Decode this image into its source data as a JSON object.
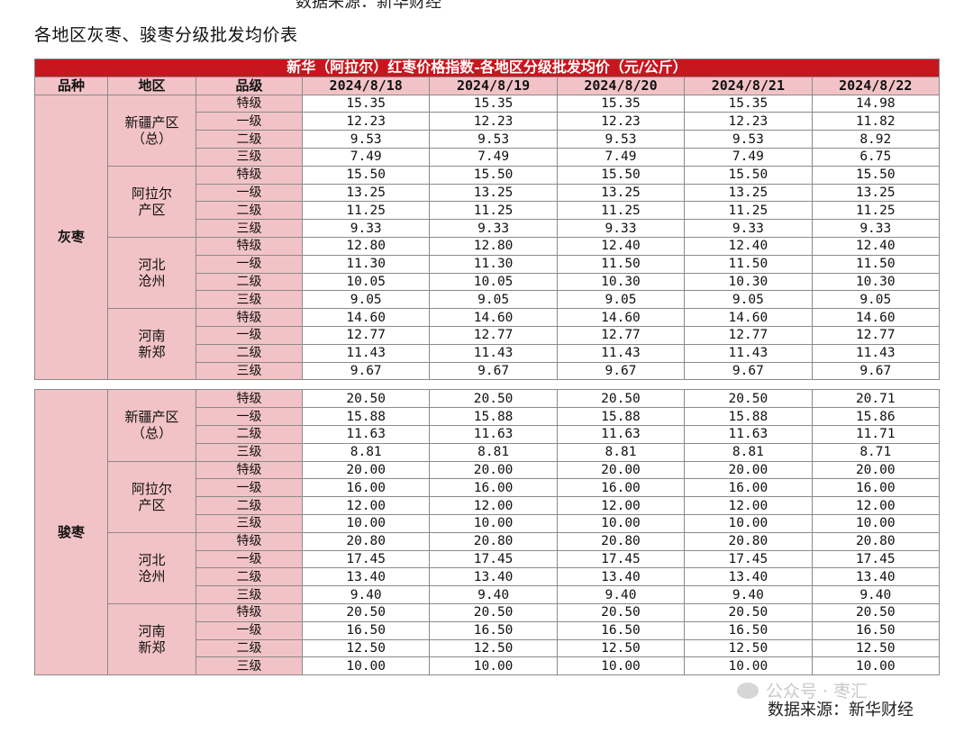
{
  "source_top": "数据来源：新华财经",
  "caption": "各地区灰枣、骏枣分级批发均价表",
  "table": {
    "title": "新华（阿拉尔）红枣价格指数-各地区分级批发均价（元/公斤）",
    "headers": {
      "variety": "品种",
      "region": "地区",
      "grade": "品级",
      "dates": [
        "2024/8/18",
        "2024/8/19",
        "2024/8/20",
        "2024/8/21",
        "2024/8/22"
      ]
    },
    "groups": [
      {
        "variety": "灰枣",
        "regions": [
          {
            "name_l1": "新疆产区",
            "name_l2": "（总）",
            "rows": [
              {
                "grade": "特级",
                "values": [
                  "15.35",
                  "15.35",
                  "15.35",
                  "15.35",
                  "14.98"
                ]
              },
              {
                "grade": "一级",
                "values": [
                  "12.23",
                  "12.23",
                  "12.23",
                  "12.23",
                  "11.82"
                ]
              },
              {
                "grade": "二级",
                "values": [
                  "9.53",
                  "9.53",
                  "9.53",
                  "9.53",
                  "8.92"
                ]
              },
              {
                "grade": "三级",
                "values": [
                  "7.49",
                  "7.49",
                  "7.49",
                  "7.49",
                  "6.75"
                ]
              }
            ]
          },
          {
            "name_l1": "阿拉尔",
            "name_l2": "产区",
            "rows": [
              {
                "grade": "特级",
                "values": [
                  "15.50",
                  "15.50",
                  "15.50",
                  "15.50",
                  "15.50"
                ]
              },
              {
                "grade": "一级",
                "values": [
                  "13.25",
                  "13.25",
                  "13.25",
                  "13.25",
                  "13.25"
                ]
              },
              {
                "grade": "二级",
                "values": [
                  "11.25",
                  "11.25",
                  "11.25",
                  "11.25",
                  "11.25"
                ]
              },
              {
                "grade": "三级",
                "values": [
                  "9.33",
                  "9.33",
                  "9.33",
                  "9.33",
                  "9.33"
                ]
              }
            ]
          },
          {
            "name_l1": "河北",
            "name_l2": "沧州",
            "rows": [
              {
                "grade": "特级",
                "values": [
                  "12.80",
                  "12.80",
                  "12.40",
                  "12.40",
                  "12.40"
                ]
              },
              {
                "grade": "一级",
                "values": [
                  "11.30",
                  "11.30",
                  "11.50",
                  "11.50",
                  "11.50"
                ]
              },
              {
                "grade": "二级",
                "values": [
                  "10.05",
                  "10.05",
                  "10.30",
                  "10.30",
                  "10.30"
                ]
              },
              {
                "grade": "三级",
                "values": [
                  "9.05",
                  "9.05",
                  "9.05",
                  "9.05",
                  "9.05"
                ]
              }
            ]
          },
          {
            "name_l1": "河南",
            "name_l2": "新郑",
            "rows": [
              {
                "grade": "特级",
                "values": [
                  "14.60",
                  "14.60",
                  "14.60",
                  "14.60",
                  "14.60"
                ]
              },
              {
                "grade": "一级",
                "values": [
                  "12.77",
                  "12.77",
                  "12.77",
                  "12.77",
                  "12.77"
                ]
              },
              {
                "grade": "二级",
                "values": [
                  "11.43",
                  "11.43",
                  "11.43",
                  "11.43",
                  "11.43"
                ]
              },
              {
                "grade": "三级",
                "values": [
                  "9.67",
                  "9.67",
                  "9.67",
                  "9.67",
                  "9.67"
                ]
              }
            ]
          }
        ]
      },
      {
        "variety": "骏枣",
        "regions": [
          {
            "name_l1": "新疆产区",
            "name_l2": "（总）",
            "rows": [
              {
                "grade": "特级",
                "values": [
                  "20.50",
                  "20.50",
                  "20.50",
                  "20.50",
                  "20.71"
                ]
              },
              {
                "grade": "一级",
                "values": [
                  "15.88",
                  "15.88",
                  "15.88",
                  "15.88",
                  "15.86"
                ]
              },
              {
                "grade": "二级",
                "values": [
                  "11.63",
                  "11.63",
                  "11.63",
                  "11.63",
                  "11.71"
                ]
              },
              {
                "grade": "三级",
                "values": [
                  "8.81",
                  "8.81",
                  "8.81",
                  "8.81",
                  "8.71"
                ]
              }
            ]
          },
          {
            "name_l1": "阿拉尔",
            "name_l2": "产区",
            "rows": [
              {
                "grade": "特级",
                "values": [
                  "20.00",
                  "20.00",
                  "20.00",
                  "20.00",
                  "20.00"
                ]
              },
              {
                "grade": "一级",
                "values": [
                  "16.00",
                  "16.00",
                  "16.00",
                  "16.00",
                  "16.00"
                ]
              },
              {
                "grade": "二级",
                "values": [
                  "12.00",
                  "12.00",
                  "12.00",
                  "12.00",
                  "12.00"
                ]
              },
              {
                "grade": "三级",
                "values": [
                  "10.00",
                  "10.00",
                  "10.00",
                  "10.00",
                  "10.00"
                ]
              }
            ]
          },
          {
            "name_l1": "河北",
            "name_l2": "沧州",
            "rows": [
              {
                "grade": "特级",
                "values": [
                  "20.80",
                  "20.80",
                  "20.80",
                  "20.80",
                  "20.80"
                ]
              },
              {
                "grade": "一级",
                "values": [
                  "17.45",
                  "17.45",
                  "17.45",
                  "17.45",
                  "17.45"
                ]
              },
              {
                "grade": "二级",
                "values": [
                  "13.40",
                  "13.40",
                  "13.40",
                  "13.40",
                  "13.40"
                ]
              },
              {
                "grade": "三级",
                "values": [
                  "9.40",
                  "9.40",
                  "9.40",
                  "9.40",
                  "9.40"
                ]
              }
            ]
          },
          {
            "name_l1": "河南",
            "name_l2": "新郑",
            "rows": [
              {
                "grade": "特级",
                "values": [
                  "20.50",
                  "20.50",
                  "20.50",
                  "20.50",
                  "20.50"
                ]
              },
              {
                "grade": "一级",
                "values": [
                  "16.50",
                  "16.50",
                  "16.50",
                  "16.50",
                  "16.50"
                ]
              },
              {
                "grade": "二级",
                "values": [
                  "12.50",
                  "12.50",
                  "12.50",
                  "12.50",
                  "12.50"
                ]
              },
              {
                "grade": "三级",
                "values": [
                  "10.00",
                  "10.00",
                  "10.00",
                  "10.00",
                  "10.00"
                ]
              }
            ]
          }
        ]
      }
    ]
  },
  "watermark": "公众号 · 枣汇",
  "source_bottom": "数据来源：新华财经",
  "colors": {
    "title_bg": "#c8161e",
    "header_bg": "#f2c3c6"
  }
}
